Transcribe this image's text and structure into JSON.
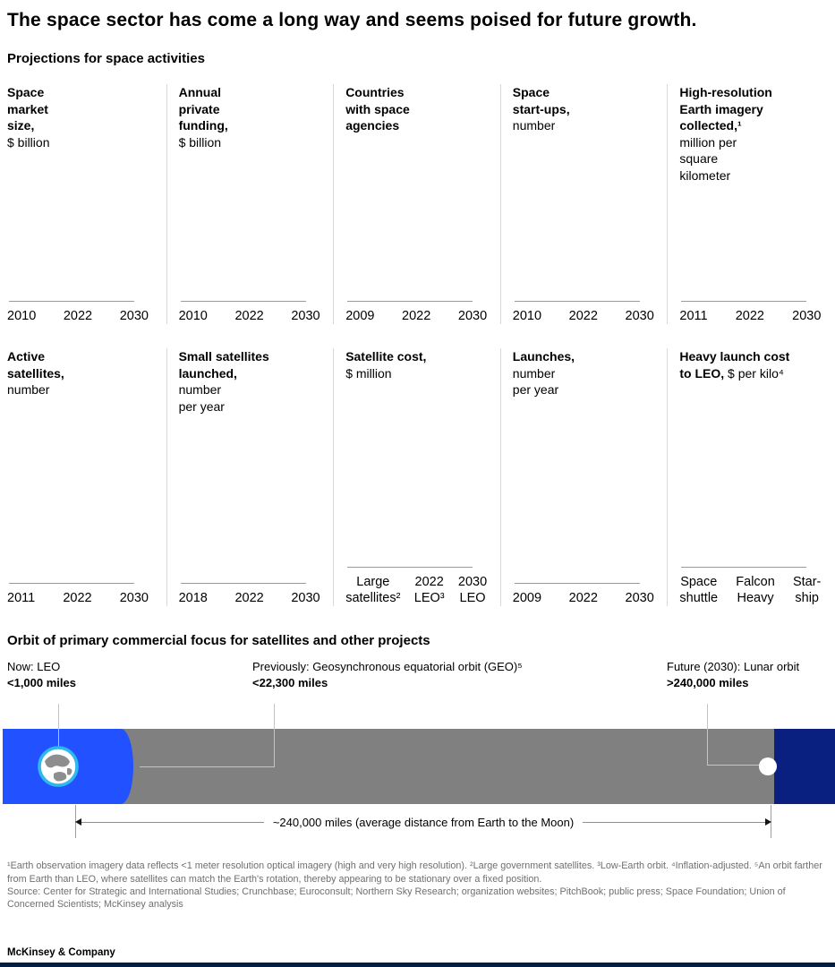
{
  "title": "The space sector has come a long way and seems poised for future growth.",
  "section_projections": {
    "heading": "Projections for space activities",
    "panels": [
      {
        "title": "Space\nmarket\nsize,",
        "unit": "\n$ billion",
        "ticks": [
          "2010",
          "2022",
          "2030"
        ]
      },
      {
        "title": "Annual\nprivate\nfunding,",
        "unit": "\n$ billion",
        "ticks": [
          "2010",
          "2022",
          "2030"
        ]
      },
      {
        "title": "Countries\nwith space\nagencies",
        "unit": "",
        "ticks": [
          "2009",
          "2022",
          "2030"
        ]
      },
      {
        "title": "Space\nstart-ups,",
        "unit": "\nnumber",
        "ticks": [
          "2010",
          "2022",
          "2030"
        ]
      },
      {
        "title": "High-resolution\nEarth imagery\ncollected,¹",
        "unit": "\nmillion per\nsquare\nkilometer",
        "ticks": [
          "2011",
          "2022",
          "2030"
        ]
      },
      {
        "title": "Active\nsatellites,",
        "unit": "\nnumber",
        "ticks": [
          "2011",
          "2022",
          "2030"
        ]
      },
      {
        "title": "Small satellites\nlaunched,",
        "unit": "\nnumber\nper year",
        "ticks": [
          "2018",
          "2022",
          "2030"
        ]
      },
      {
        "title": "Satellite cost,",
        "unit": "\n$ million",
        "ticks": [
          "Large\nsatellites²",
          "2022\nLEO³",
          "2030\nLEO"
        ]
      },
      {
        "title": "Launches,",
        "unit": "\nnumber\nper year",
        "ticks": [
          "2009",
          "2022",
          "2030"
        ]
      },
      {
        "title": "Heavy launch cost\nto LEO,",
        "unit": " $ per kilo⁴",
        "ticks": [
          "Space\nshuttle",
          "Falcon\nHeavy",
          "Star-\nship"
        ]
      }
    ]
  },
  "section_orbit": {
    "heading": "Orbit of primary commercial focus for satellites and other projects",
    "labels": [
      {
        "line1": "Now: LEO",
        "line2": "<1,000 miles"
      },
      {
        "line1": "Previously: Geosynchronous equatorial orbit (GEO)⁵",
        "line2": "<22,300 miles"
      },
      {
        "line1": "Future (2030): Lunar orbit",
        "line2": ">240,000 miles"
      }
    ],
    "distance_label": "~240,000 miles (average distance from Earth to the Moon)",
    "colors": {
      "leo_blue": "#2251ff",
      "bar_gray": "#808080",
      "lunar_navy": "#0a2080",
      "earth_ring_cyan": "#2fb9ea",
      "bottom_bar_navy": "#051c45"
    }
  },
  "footnotes": {
    "notes": "¹Earth observation imagery data reflects <1 meter resolution optical imagery (high and very high resolution). ²Large government satellites. ³Low-Earth orbit. ⁴Inflation-adjusted. ⁵An orbit farther from Earth than LEO, where satellites can match the Earth's rotation, thereby appearing to be stationary over a fixed position.",
    "source": "Source: Center for Strategic and International Studies; Crunchbase; Euroconsult; Northern Sky Research; organization websites; PitchBook; public press; Space Foundation; Union of Concerned Scientists; McKinsey analysis"
  },
  "footer": {
    "brand": "McKinsey & Company"
  },
  "chart_data": [
    {
      "type": "bar",
      "title": "Space market size, $ billion",
      "categories": [
        "2010",
        "2022",
        "2030"
      ],
      "values": []
    },
    {
      "type": "bar",
      "title": "Annual private funding, $ billion",
      "categories": [
        "2010",
        "2022",
        "2030"
      ],
      "values": []
    },
    {
      "type": "bar",
      "title": "Countries with space agencies",
      "categories": [
        "2009",
        "2022",
        "2030"
      ],
      "values": []
    },
    {
      "type": "bar",
      "title": "Space start-ups, number",
      "categories": [
        "2010",
        "2022",
        "2030"
      ],
      "values": []
    },
    {
      "type": "bar",
      "title": "High-resolution Earth imagery collected,¹ million per square kilometer",
      "categories": [
        "2011",
        "2022",
        "2030"
      ],
      "values": []
    },
    {
      "type": "bar",
      "title": "Active satellites, number",
      "categories": [
        "2011",
        "2022",
        "2030"
      ],
      "values": []
    },
    {
      "type": "bar",
      "title": "Small satellites launched, number per year",
      "categories": [
        "2018",
        "2022",
        "2030"
      ],
      "values": []
    },
    {
      "type": "bar",
      "title": "Satellite cost, $ million",
      "categories": [
        "Large satellites²",
        "2022 LEO³",
        "2030 LEO"
      ],
      "values": []
    },
    {
      "type": "bar",
      "title": "Launches, number per year",
      "categories": [
        "2009",
        "2022",
        "2030"
      ],
      "values": []
    },
    {
      "type": "bar",
      "title": "Heavy launch cost to LEO, $ per kilo⁴",
      "categories": [
        "Space shuttle",
        "Falcon Heavy",
        "Star-ship"
      ],
      "values": []
    },
    {
      "type": "diagram",
      "title": "Orbit of primary commercial focus for satellites and other projects",
      "points": [
        {
          "label": "Now: LEO",
          "distance": "<1,000 miles"
        },
        {
          "label": "Previously: Geosynchronous equatorial orbit (GEO)⁵",
          "distance": "<22,300 miles"
        },
        {
          "label": "Future (2030): Lunar orbit",
          "distance": ">240,000 miles"
        }
      ],
      "axis_span": "~240,000 miles (average distance from Earth to the Moon)"
    }
  ]
}
